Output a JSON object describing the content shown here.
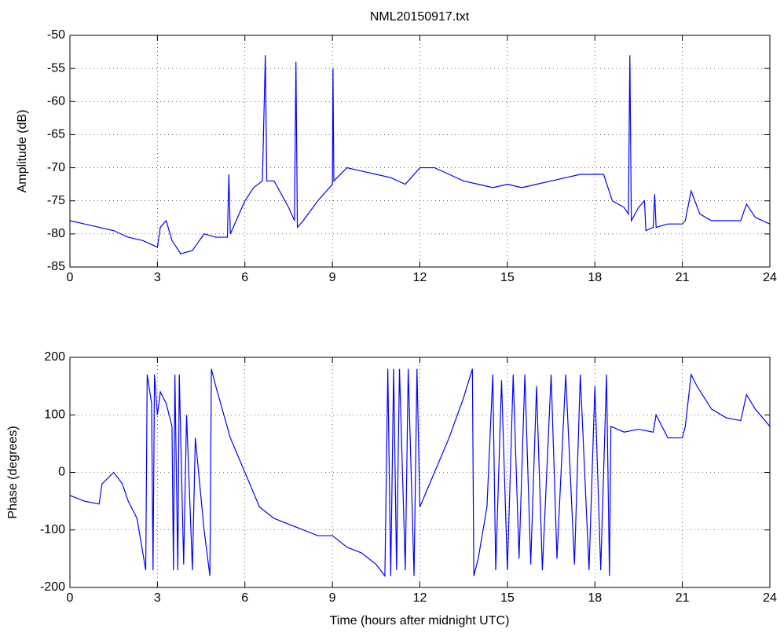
{
  "chart_data": [
    {
      "type": "line",
      "title": "NML20150917.txt",
      "ylabel": "Amplitude (dB)",
      "color": "#0000ff",
      "grid": true,
      "xlim": [
        0,
        24
      ],
      "xticks": [
        0,
        3,
        6,
        9,
        12,
        15,
        18,
        21,
        24
      ],
      "ylim": [
        -85,
        -50
      ],
      "yticks": [
        -85,
        -80,
        -75,
        -70,
        -65,
        -60,
        -55,
        -50
      ],
      "x": [
        0,
        0.5,
        1,
        1.5,
        2,
        2.5,
        3,
        3.1,
        3.3,
        3.5,
        3.8,
        4.2,
        4.6,
        5,
        5.4,
        5.45,
        5.5,
        6,
        6.3,
        6.6,
        6.7,
        6.75,
        7,
        7.5,
        7.7,
        7.75,
        7.8,
        8,
        8.5,
        9,
        9.02,
        9.05,
        9.5,
        10,
        10.5,
        11,
        11.5,
        12,
        12.5,
        13,
        13.5,
        14,
        14.5,
        15,
        15.5,
        16,
        16.5,
        17,
        17.5,
        18,
        18.3,
        18.6,
        19,
        19.15,
        19.2,
        19.25,
        19.5,
        19.7,
        19.75,
        20,
        20.05,
        20.1,
        20.5,
        21,
        21.1,
        21.3,
        21.6,
        22,
        22.5,
        23,
        23.2,
        23.5,
        24
      ],
      "values": [
        -78,
        -78.5,
        -79,
        -79.5,
        -80.5,
        -81,
        -82,
        -79,
        -78,
        -81,
        -83,
        -82.5,
        -80,
        -80.5,
        -80.5,
        -71,
        -80,
        -75,
        -73,
        -72,
        -53,
        -72,
        -72,
        -76,
        -78,
        -54,
        -79,
        -78,
        -75,
        -72.5,
        -55,
        -72,
        -70,
        -70.5,
        -71,
        -71.5,
        -72.5,
        -70,
        -70,
        -71,
        -72,
        -72.5,
        -73,
        -72.5,
        -73,
        -72.5,
        -72,
        -71.5,
        -71,
        -71,
        -71,
        -75,
        -76,
        -77,
        -53,
        -78,
        -76,
        -75,
        -79.5,
        -79,
        -74,
        -79,
        -78.5,
        -78.5,
        -78,
        -73.5,
        -77,
        -78,
        -78,
        -78,
        -75.5,
        -77.5,
        -78.5
      ]
    },
    {
      "type": "line",
      "ylabel": "Phase (degrees)",
      "xlabel": "Time (hours after midnight UTC)",
      "color": "#0000ff",
      "grid": true,
      "xlim": [
        0,
        24
      ],
      "xticks": [
        0,
        3,
        6,
        9,
        12,
        15,
        18,
        21,
        24
      ],
      "ylim": [
        -200,
        200
      ],
      "yticks": [
        -200,
        -100,
        0,
        100,
        200
      ],
      "x": [
        0,
        0.5,
        1,
        1.1,
        1.3,
        1.5,
        1.8,
        2,
        2.3,
        2.6,
        2.65,
        2.8,
        2.85,
        2.9,
        3.0,
        3.1,
        3.3,
        3.5,
        3.55,
        3.6,
        3.7,
        3.75,
        3.9,
        4.0,
        4.2,
        4.3,
        4.6,
        4.8,
        4.85,
        5,
        5.5,
        6,
        6.5,
        7,
        7.5,
        8,
        8.5,
        9,
        9.5,
        10,
        10.5,
        10.8,
        10.9,
        11.0,
        11.1,
        11.2,
        11.3,
        11.5,
        11.6,
        11.8,
        11.9,
        12,
        12.5,
        13,
        13.5,
        13.8,
        13.85,
        14,
        14.3,
        14.5,
        14.6,
        14.8,
        15,
        15.2,
        15.4,
        15.6,
        15.8,
        16,
        16.2,
        16.5,
        16.7,
        17,
        17.3,
        17.5,
        17.8,
        18,
        18.2,
        18.4,
        18.5,
        18.55,
        19,
        19.5,
        20,
        20.1,
        20.5,
        21,
        21.1,
        21.3,
        21.5,
        22,
        22.5,
        23,
        23.2,
        23.5,
        24
      ],
      "values": [
        -40,
        -50,
        -55,
        -20,
        -10,
        0,
        -20,
        -50,
        -80,
        -170,
        170,
        120,
        -170,
        170,
        100,
        140,
        120,
        80,
        -170,
        170,
        -170,
        170,
        -160,
        100,
        -170,
        60,
        -100,
        -180,
        180,
        150,
        60,
        0,
        -60,
        -80,
        -90,
        -100,
        -110,
        -110,
        -130,
        -140,
        -160,
        -180,
        180,
        -180,
        180,
        -170,
        180,
        -170,
        180,
        -180,
        180,
        -60,
        0,
        60,
        130,
        180,
        -180,
        -150,
        -60,
        170,
        -170,
        160,
        -170,
        170,
        -150,
        170,
        -160,
        150,
        -170,
        170,
        -150,
        170,
        -160,
        170,
        -170,
        150,
        -170,
        170,
        -180,
        80,
        70,
        75,
        70,
        100,
        60,
        60,
        80,
        170,
        150,
        110,
        95,
        90,
        135,
        110,
        80
      ]
    }
  ]
}
